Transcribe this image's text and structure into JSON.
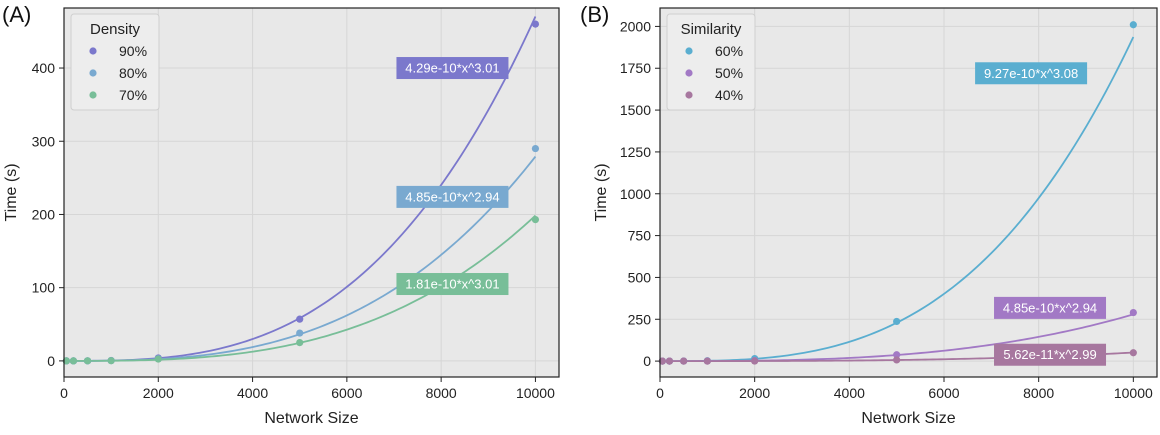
{
  "chart_data": [
    {
      "type": "scatter",
      "panel_label": "(A)",
      "xlabel": "Network Size",
      "ylabel": "Time (s)",
      "xlim": [
        0,
        10500
      ],
      "ylim": [
        -22,
        482
      ],
      "xticks": [
        0,
        2000,
        4000,
        6000,
        8000,
        10000
      ],
      "yticks": [
        0,
        100,
        200,
        300,
        400
      ],
      "grid": true,
      "legend": {
        "title": "Density",
        "placement": "top-left"
      },
      "series": [
        {
          "name": "90%",
          "color": "#7b78cc",
          "x": [
            50,
            200,
            500,
            1000,
            2000,
            5000,
            10000
          ],
          "y": [
            0,
            0,
            0.1,
            0.5,
            4,
            57,
            460
          ],
          "fit": {
            "a": 4.29e-10,
            "b": 3.01,
            "label": "4.29e-10*x^3.01",
            "label_at": [
              8240,
              400
            ]
          }
        },
        {
          "name": "80%",
          "color": "#79a9d0",
          "x": [
            50,
            200,
            500,
            1000,
            2000,
            5000,
            10000
          ],
          "y": [
            0,
            0,
            0.1,
            0.4,
            3,
            38,
            290
          ],
          "fit": {
            "a": 4.85e-10,
            "b": 2.94,
            "label": "4.85e-10*x^2.94",
            "label_at": [
              8240,
              224
            ]
          }
        },
        {
          "name": "70%",
          "color": "#78be98",
          "x": [
            50,
            200,
            500,
            1000,
            2000,
            5000,
            10000
          ],
          "y": [
            0,
            0,
            0.1,
            0.3,
            2.5,
            25,
            193
          ],
          "fit": {
            "a": 1.81e-10,
            "b": 3.01,
            "label": "1.81e-10*x^3.01",
            "label_at": [
              8240,
              105
            ]
          }
        }
      ]
    },
    {
      "type": "scatter",
      "panel_label": "(B)",
      "xlabel": "Network Size",
      "ylabel": "Time (s)",
      "xlim": [
        0,
        10500
      ],
      "ylim": [
        -95,
        2110
      ],
      "xticks": [
        0,
        2000,
        4000,
        6000,
        8000,
        10000
      ],
      "yticks": [
        0,
        250,
        500,
        750,
        1000,
        1250,
        1500,
        1750,
        2000
      ],
      "grid": true,
      "legend": {
        "title": "Similarity",
        "placement": "top-left"
      },
      "series": [
        {
          "name": "60%",
          "color": "#5aaed0",
          "x": [
            50,
            200,
            500,
            1000,
            2000,
            5000,
            10000
          ],
          "y": [
            0,
            0,
            0.5,
            2,
            15,
            237,
            2010
          ],
          "fit": {
            "a": 9.27e-10,
            "b": 3.08,
            "label": "9.27e-10*x^3.08",
            "label_at": [
              7840,
              1720
            ]
          }
        },
        {
          "name": "50%",
          "color": "#a279c5",
          "x": [
            50,
            200,
            500,
            1000,
            2000,
            5000,
            10000
          ],
          "y": [
            0,
            0,
            0.1,
            0.4,
            3,
            38,
            290
          ],
          "fit": {
            "a": 4.85e-10,
            "b": 2.94,
            "label": "4.85e-10*x^2.94",
            "label_at": [
              8240,
              318
            ]
          }
        },
        {
          "name": "40%",
          "color": "#a7779f",
          "x": [
            50,
            200,
            500,
            1000,
            2000,
            5000,
            10000
          ],
          "y": [
            0,
            0,
            0.05,
            0.05,
            0.4,
            7,
            50
          ],
          "fit": {
            "a": 5.62e-11,
            "b": 2.99,
            "label": "5.62e-11*x^2.99",
            "label_at": [
              8240,
              38
            ]
          }
        }
      ]
    }
  ]
}
